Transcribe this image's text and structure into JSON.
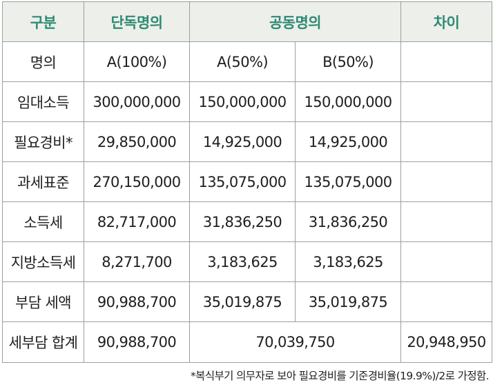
{
  "table": {
    "headers": {
      "category": "구분",
      "single": "단독명의",
      "joint": "공동명의",
      "difference": "차이"
    },
    "rows": [
      {
        "label": "명의",
        "single": "A(100%)",
        "joint_a": "A(50%)",
        "joint_b": "B(50%)",
        "difference": ""
      },
      {
        "label": "임대소득",
        "single": "300,000,000",
        "joint_a": "150,000,000",
        "joint_b": "150,000,000",
        "difference": ""
      },
      {
        "label": "필요경비*",
        "single": "29,850,000",
        "joint_a": "14,925,000",
        "joint_b": "14,925,000",
        "difference": ""
      },
      {
        "label": "과세표준",
        "single": "270,150,000",
        "joint_a": "135,075,000",
        "joint_b": "135,075,000",
        "difference": ""
      },
      {
        "label": "소득세",
        "single": "82,717,000",
        "joint_a": "31,836,250",
        "joint_b": "31,836,250",
        "difference": ""
      },
      {
        "label": "지방소득세",
        "single": "8,271,700",
        "joint_a": "3,183,625",
        "joint_b": "3,183,625",
        "difference": ""
      },
      {
        "label": "부담 세액",
        "single": "90,988,700",
        "joint_a": "35,019,875",
        "joint_b": "35,019,875",
        "difference": ""
      }
    ],
    "total": {
      "label": "세부담 합계",
      "single": "90,988,700",
      "joint": "70,039,750",
      "difference": "20,948,950"
    }
  },
  "footnote": "*복식부기 의무자로 보아 필요경비를 기준경비율(19.9%)/2로 가정함.",
  "colors": {
    "header_background": "#ecefea",
    "header_text": "#2e8a74",
    "border": "#9aa09c"
  }
}
